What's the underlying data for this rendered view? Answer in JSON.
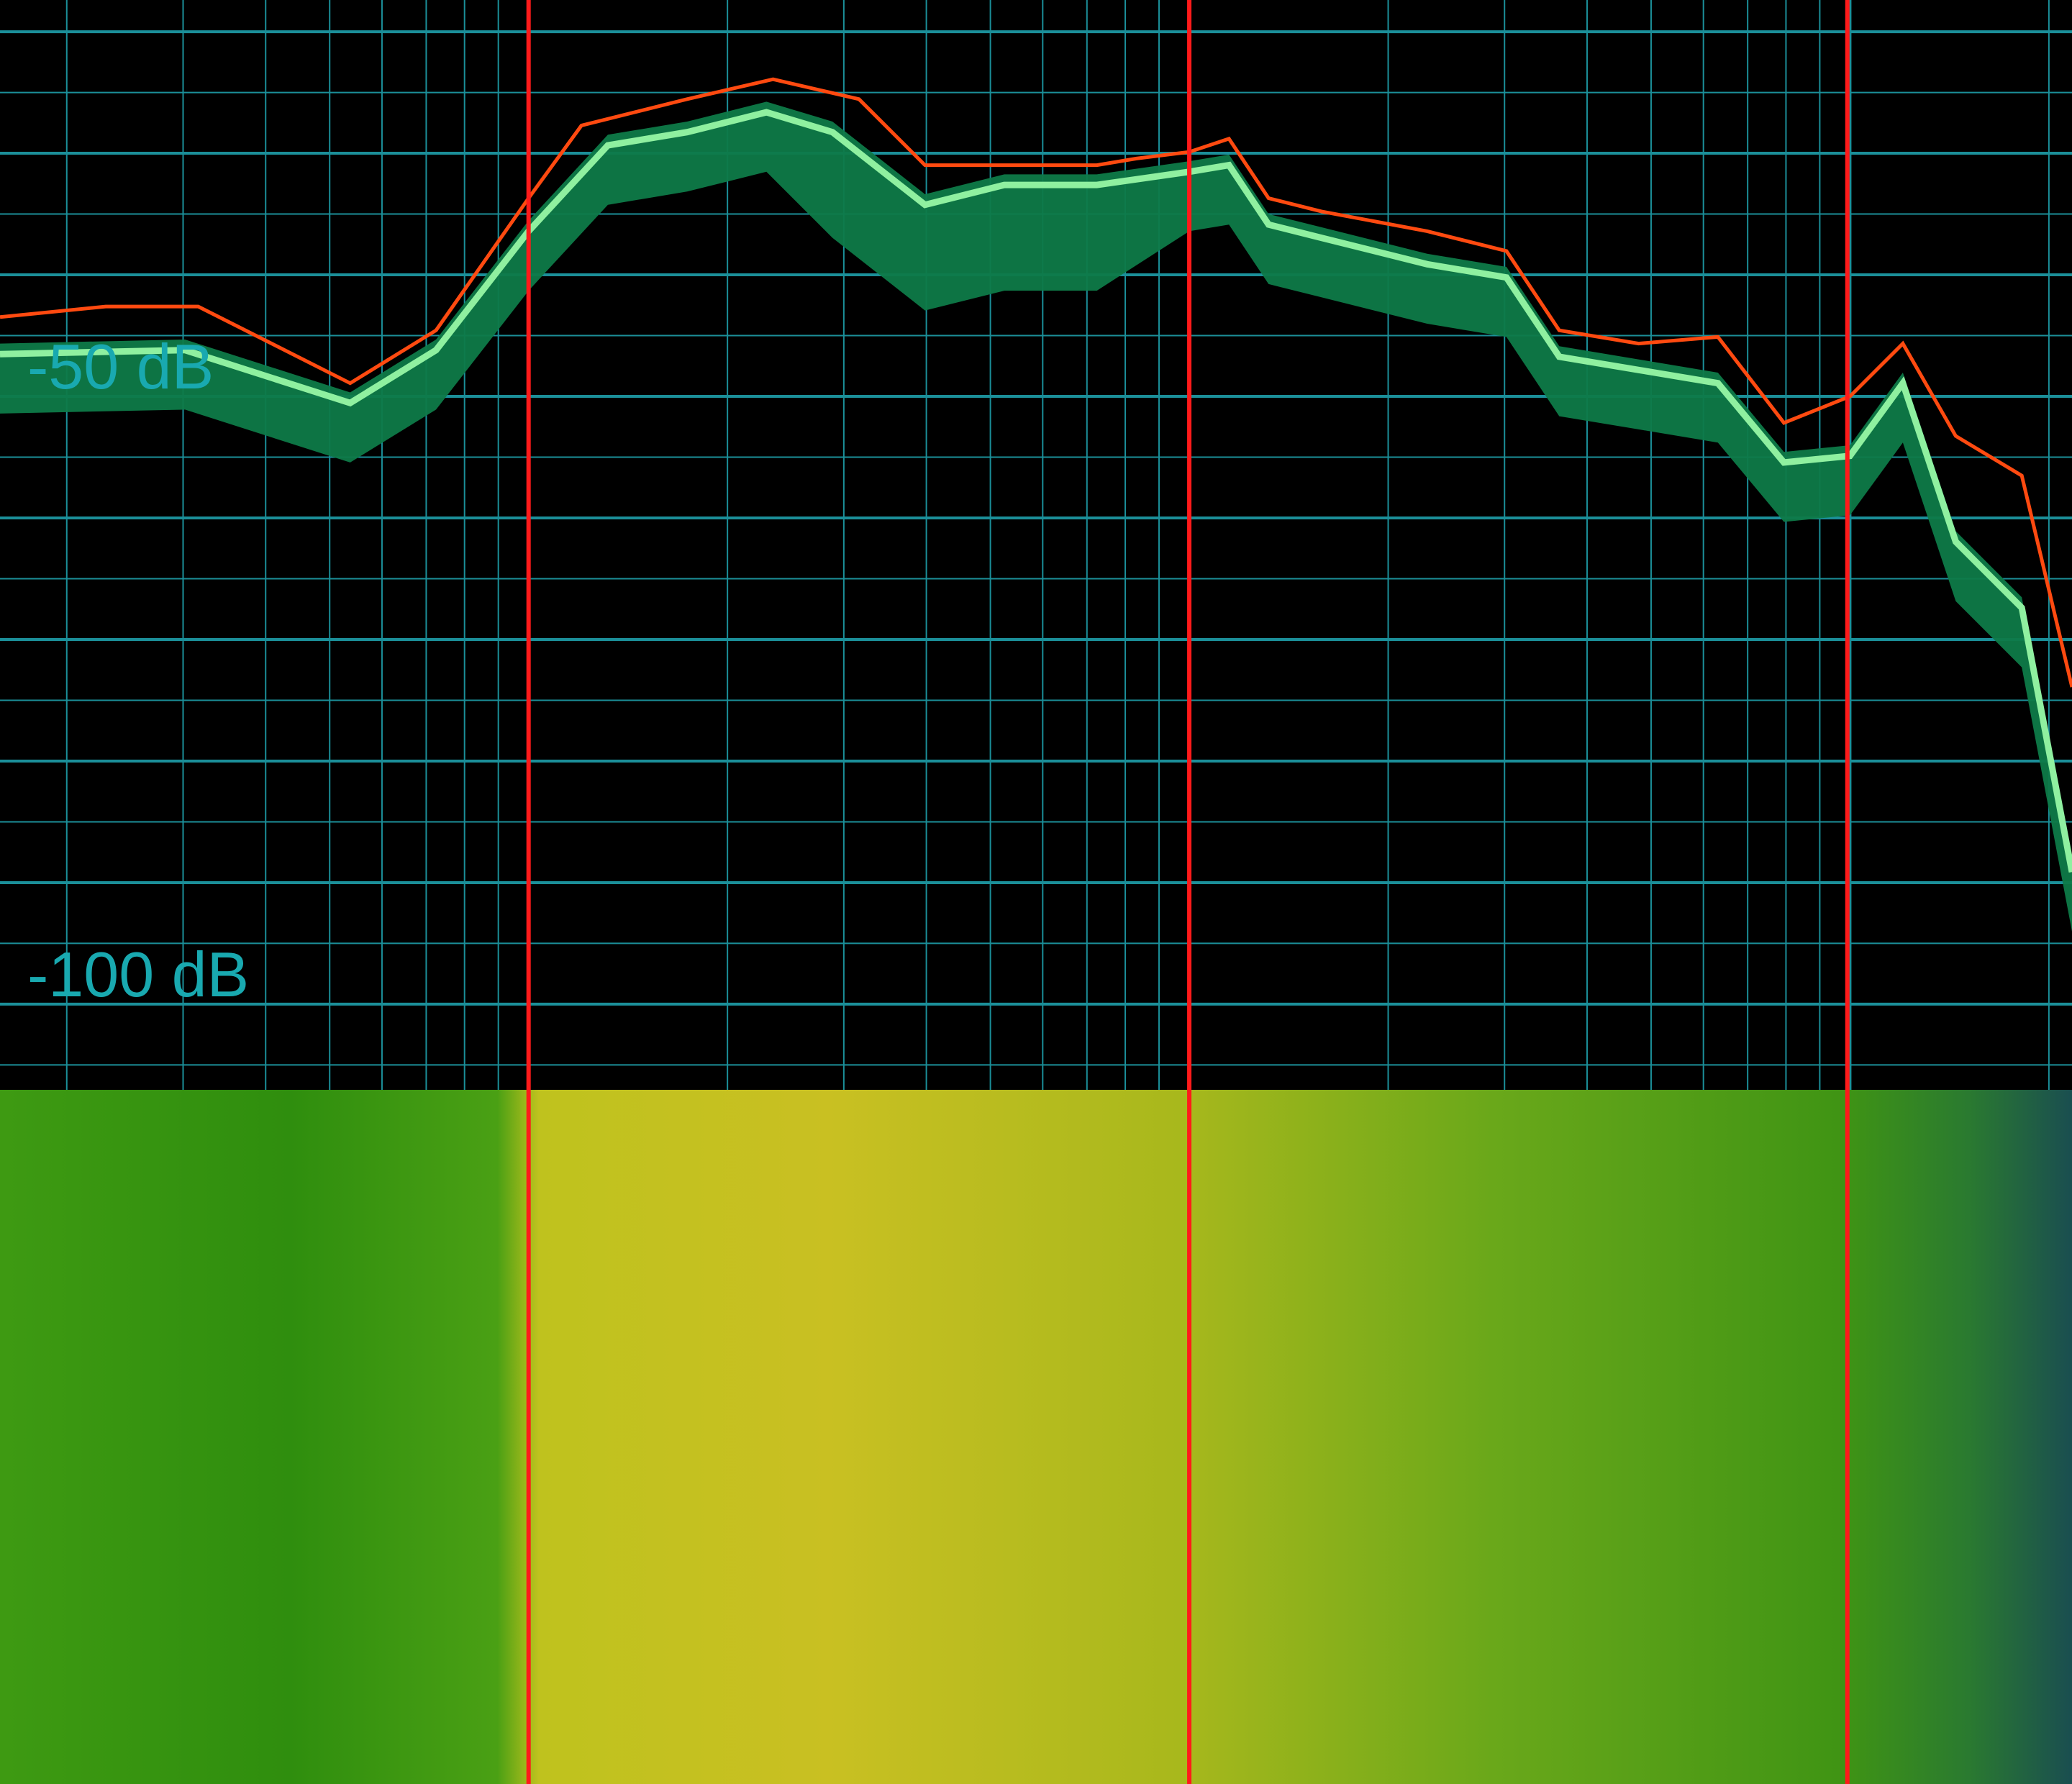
{
  "spectrum": {
    "labels": [
      "-50 dB",
      "-100 dB"
    ]
  }
}
